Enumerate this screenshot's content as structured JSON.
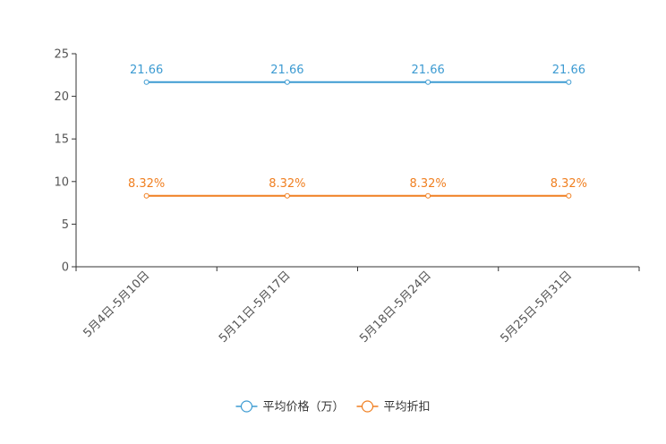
{
  "chart_data": {
    "type": "line",
    "title": "",
    "xlabel": "",
    "ylabel": "",
    "ylim": [
      0,
      25
    ],
    "yticks": [
      0,
      5,
      10,
      15,
      20,
      25
    ],
    "grid": false,
    "legend_position": "bottom",
    "categories": [
      "5月4日-5月10日",
      "5月11日-5月17日",
      "5月18日-5月24日",
      "5月25日-5月31日"
    ],
    "series": [
      {
        "name": "平均价格（万）",
        "values": [
          21.66,
          21.66,
          21.66,
          21.66
        ],
        "labels": [
          "21.66",
          "21.66",
          "21.66",
          "21.66"
        ],
        "color": "#3d9bd2"
      },
      {
        "name": "平均折扣",
        "values": [
          8.32,
          8.32,
          8.32,
          8.32
        ],
        "labels": [
          "8.32%",
          "8.32%",
          "8.32%",
          "8.32%"
        ],
        "color": "#f07f20"
      }
    ]
  }
}
